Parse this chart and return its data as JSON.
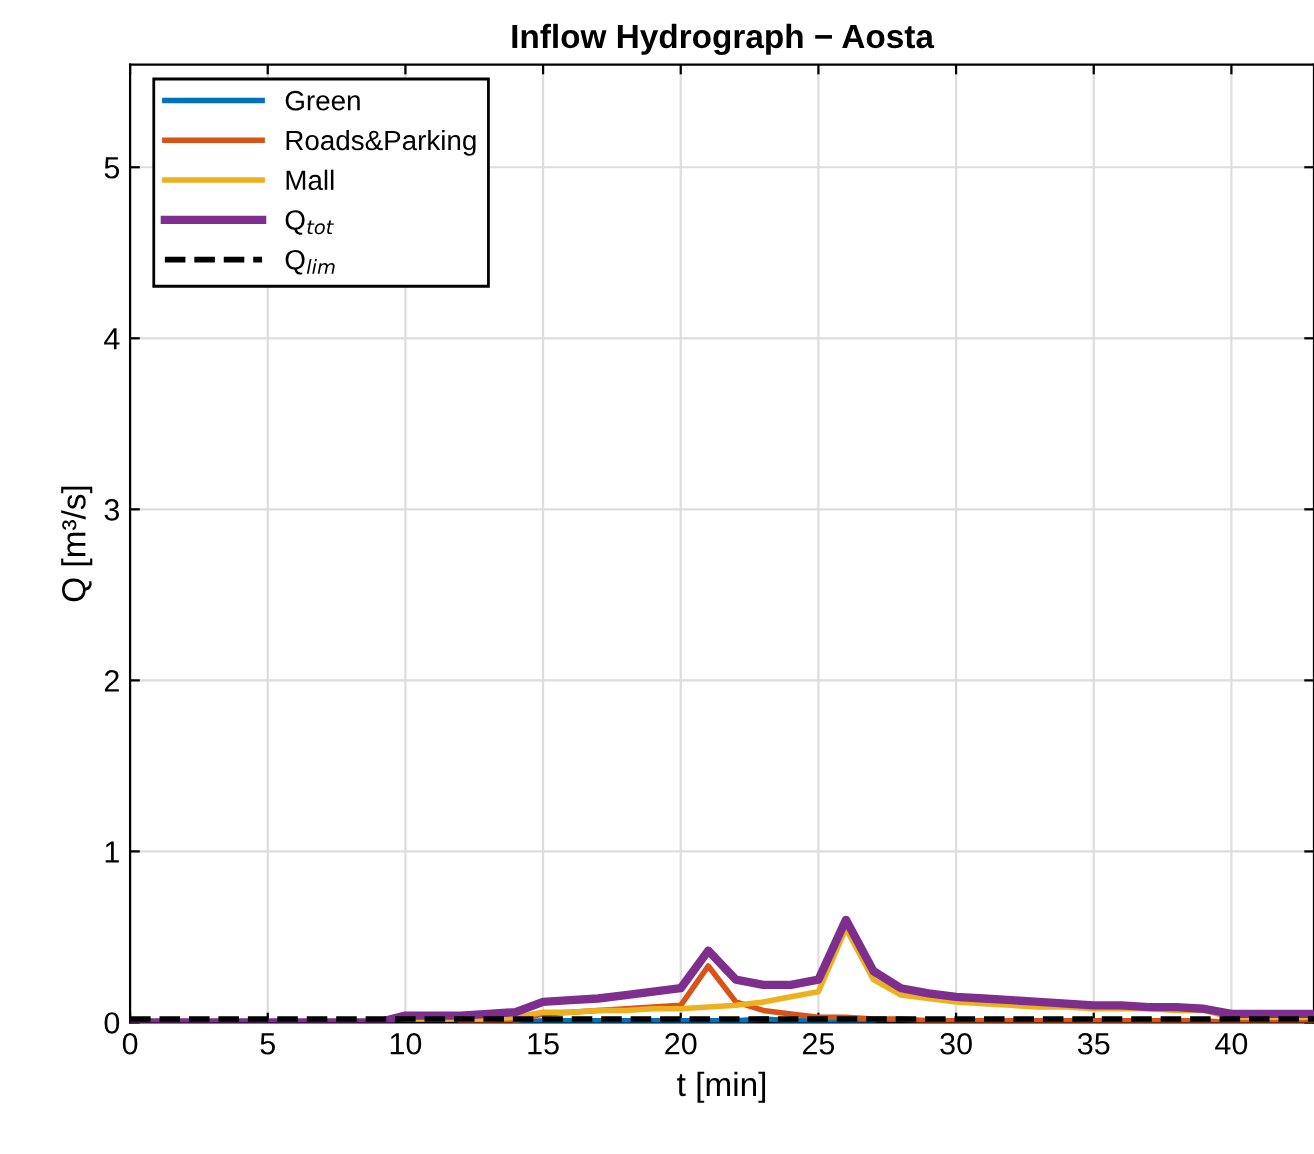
{
  "chart_data": {
    "type": "line",
    "title": "Inflow Hydrograph − Aosta",
    "xlabel": "t [min]",
    "ylabel": "Q [m³/s]",
    "x": [
      0,
      1,
      2,
      3,
      4,
      5,
      6,
      7,
      8,
      9,
      10,
      11,
      12,
      13,
      14,
      15,
      16,
      17,
      18,
      19,
      20,
      21,
      22,
      23,
      24,
      25,
      26,
      27,
      28,
      29,
      30,
      31,
      32,
      33,
      34,
      35,
      36,
      37,
      38,
      39,
      40,
      41,
      42,
      43
    ],
    "series": [
      {
        "name": "Green",
        "color": "#0072bd",
        "values": [
          null,
          null,
          null,
          null,
          null,
          null,
          null,
          null,
          null,
          null,
          null,
          null,
          null,
          null,
          0,
          0.01,
          0.01,
          0.01,
          0.01,
          0.01,
          0.01,
          0.01,
          0.01,
          0.02,
          0.01,
          0.01,
          0.01,
          0.01,
          null,
          null,
          null,
          null,
          null,
          null,
          null,
          null,
          null,
          null,
          null,
          null,
          null,
          null,
          null,
          null
        ]
      },
      {
        "name": "Roads&Parking",
        "color": "#d95319",
        "values": [
          null,
          null,
          null,
          null,
          null,
          null,
          null,
          null,
          null,
          null,
          null,
          null,
          0.01,
          0.01,
          0.01,
          0.05,
          0.06,
          0.07,
          0.08,
          0.09,
          0.1,
          0.33,
          0.12,
          0.07,
          0.05,
          0.03,
          0.03,
          0.02,
          0.02,
          0.01,
          0.01,
          0.01,
          0.01,
          0.01,
          0.01,
          0.01,
          0.01,
          0.01,
          0.01,
          0.01,
          0,
          0,
          0,
          0
        ]
      },
      {
        "name": "Mall",
        "color": "#edb120",
        "values": [
          null,
          null,
          null,
          null,
          null,
          null,
          null,
          null,
          null,
          null,
          0.02,
          0.02,
          0.02,
          0.02,
          0.03,
          0.06,
          0.06,
          0.07,
          0.07,
          0.08,
          0.08,
          0.09,
          0.1,
          0.12,
          0.15,
          0.18,
          0.55,
          0.25,
          0.16,
          0.14,
          0.12,
          0.11,
          0.1,
          0.09,
          0.09,
          0.08,
          0.08,
          0.08,
          0.07,
          0.07,
          0.03,
          0.03,
          0.03,
          0.03
        ]
      },
      {
        "name": "Q$_{tot}$",
        "color": "#7e2f8e",
        "values": [
          0,
          0,
          0,
          0,
          0,
          0,
          0,
          0,
          0,
          0,
          0.04,
          0.04,
          0.04,
          0.05,
          0.06,
          0.12,
          0.13,
          0.14,
          0.16,
          0.18,
          0.2,
          0.42,
          0.25,
          0.22,
          0.22,
          0.25,
          0.6,
          0.3,
          0.2,
          0.17,
          0.15,
          0.14,
          0.13,
          0.12,
          0.11,
          0.1,
          0.1,
          0.09,
          0.09,
          0.08,
          0.05,
          0.05,
          0.05,
          0.05
        ]
      },
      {
        "name": "Q$_{lim}$",
        "color": "#000000",
        "line_style": "dashed",
        "values": [
          0.02,
          0.02,
          0.02,
          0.02,
          0.02,
          0.02,
          0.02,
          0.02,
          0.02,
          0.02,
          0.02,
          0.02,
          0.02,
          0.02,
          0.02,
          0.02,
          0.02,
          0.02,
          0.02,
          0.02,
          0.02,
          0.02,
          0.02,
          0.02,
          0.02,
          0.02,
          0.02,
          0.02,
          0.02,
          0.02,
          0.02,
          0.02,
          0.02,
          0.02,
          0.02,
          0.02,
          0.02,
          0.02,
          0.02,
          0.02,
          0.02,
          0.02,
          0.02,
          0.02
        ]
      }
    ],
    "xlim": [
      0,
      43
    ],
    "ylim": [
      0,
      5.6
    ],
    "xticks": [
      0,
      5,
      10,
      15,
      20,
      25,
      30,
      35,
      40
    ],
    "yticks": [
      0,
      1,
      2,
      3,
      4,
      5
    ],
    "grid": true,
    "legend": "top left",
    "line_style": "solid"
  }
}
